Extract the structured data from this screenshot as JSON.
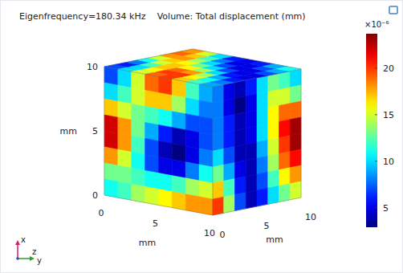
{
  "chart_data": {
    "type": "volume",
    "title": "Eigenfrequency=180.34 kHz",
    "subtitle": "Volume: Total displacement (mm)",
    "xlabel": "mm",
    "ylabel": "mm",
    "zlabel": "mm",
    "xlim": [
      0,
      10
    ],
    "ylim": [
      0,
      10
    ],
    "zlim": [
      0,
      10
    ],
    "xticks": [
      0,
      5,
      10
    ],
    "yticks": [
      0,
      5,
      10
    ],
    "zticks": [
      0,
      5,
      10
    ],
    "axis_names": [
      "x",
      "z",
      "y"
    ],
    "faces": [
      {
        "cells": [
          [
            7,
            10,
            15,
            19,
            20,
            17,
            12,
            9
          ],
          [
            10,
            12,
            15,
            17,
            17,
            14,
            10,
            8
          ],
          [
            17,
            15,
            13,
            12,
            11,
            9,
            7,
            7
          ],
          [
            22,
            18,
            13,
            9,
            6,
            4,
            5,
            7
          ],
          [
            22,
            18,
            12,
            7,
            4,
            3,
            5,
            8
          ],
          [
            18,
            15,
            11,
            7,
            5,
            5,
            8,
            11
          ],
          [
            13,
            13,
            12,
            11,
            11,
            12,
            14,
            15
          ],
          [
            11,
            12,
            14,
            15,
            16,
            17,
            18,
            18
          ]
        ]
      },
      {
        "cells": [
          [
            8,
            5,
            4,
            6,
            10,
            13,
            12,
            10
          ],
          [
            8,
            5,
            3,
            5,
            10,
            15,
            15,
            13
          ],
          [
            8,
            6,
            4,
            5,
            10,
            16,
            19,
            19
          ],
          [
            8,
            6,
            4,
            5,
            10,
            16,
            21,
            23
          ],
          [
            10,
            7,
            4,
            4,
            9,
            15,
            20,
            23
          ],
          [
            13,
            9,
            5,
            4,
            8,
            14,
            19,
            21
          ],
          [
            17,
            12,
            6,
            4,
            7,
            12,
            16,
            18
          ],
          [
            20,
            14,
            7,
            4,
            6,
            10,
            13,
            15
          ]
        ]
      },
      {
        "cells": [
          [
            7,
            10,
            15,
            19,
            20,
            17,
            12,
            9
          ],
          [
            6,
            10,
            16,
            20,
            20,
            16,
            11,
            8
          ],
          [
            8,
            12,
            17,
            19,
            18,
            14,
            9,
            6
          ],
          [
            11,
            15,
            17,
            16,
            14,
            10,
            6,
            5
          ],
          [
            15,
            17,
            16,
            13,
            10,
            7,
            5,
            5
          ],
          [
            18,
            18,
            14,
            10,
            7,
            5,
            5,
            7
          ],
          [
            19,
            17,
            12,
            8,
            5,
            5,
            7,
            9
          ],
          [
            18,
            15,
            10,
            6,
            5,
            6,
            9,
            11
          ]
        ]
      }
    ],
    "colorbar": {
      "lim": [
        2.9,
        23.7
      ],
      "ticks": [
        5,
        10,
        15,
        20
      ],
      "label": "×10⁻⁶"
    }
  }
}
